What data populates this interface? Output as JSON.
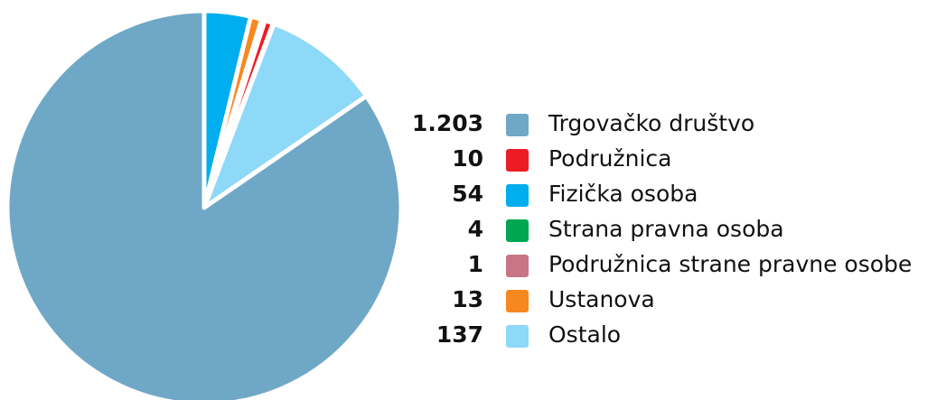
{
  "chart_data": {
    "type": "pie",
    "categories": [
      "Trgovačko društvo",
      "Podružnica",
      "Fizička osoba",
      "Strana pravna osoba",
      "Podružnica strane pravne osobe",
      "Ustanova",
      "Ostalo"
    ],
    "values": [
      1203,
      10,
      54,
      4,
      1,
      13,
      137
    ],
    "value_labels": [
      "1.203",
      "10",
      "54",
      "4",
      "1",
      "13",
      "137"
    ],
    "colors": [
      "#6fa8c6",
      "#ed1c24",
      "#00adef",
      "#00a651",
      "#c97585",
      "#f7881f",
      "#8ed8f8"
    ]
  }
}
